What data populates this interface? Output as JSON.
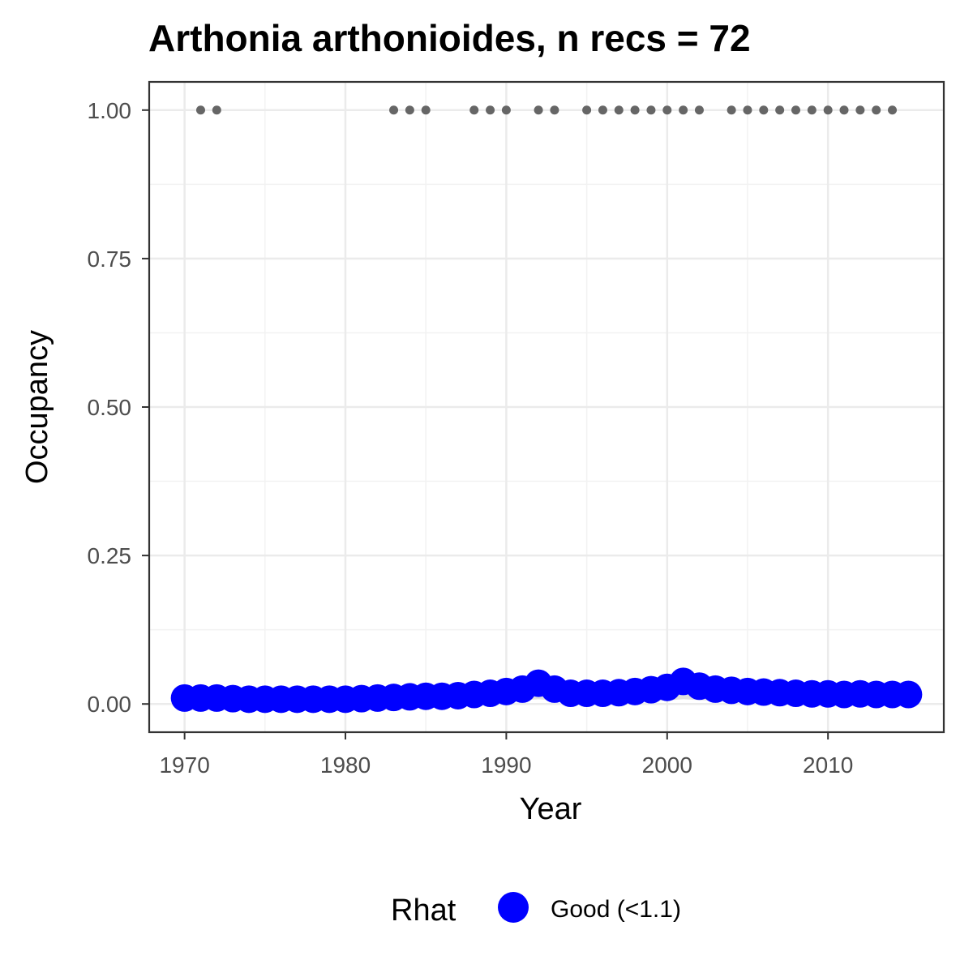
{
  "chart_data": {
    "type": "scatter",
    "title": "Arthonia arthonioides, n recs = 72",
    "xlabel": "Year",
    "ylabel": "Occupancy",
    "xlim": [
      1967.8,
      2017.2
    ],
    "ylim": [
      -0.0475,
      1.0475
    ],
    "x_ticks": [
      1970,
      1980,
      1990,
      2000,
      2010
    ],
    "x_tick_labels": [
      "1970",
      "1980",
      "1990",
      "2000",
      "2010"
    ],
    "y_ticks": [
      0,
      0.25,
      0.5,
      0.75,
      1
    ],
    "y_tick_labels": [
      "0.00",
      "0.25",
      "0.50",
      "0.75",
      "1.00"
    ],
    "grid": true,
    "legend": {
      "title": "Rhat",
      "position": "bottom",
      "entries": [
        {
          "label": "Good (<1.1)",
          "color": "#0000ff"
        }
      ]
    },
    "series": [
      {
        "name": "Good (<1.1)",
        "kind": "points",
        "color": "#0000ff",
        "x": [
          1970,
          1971,
          1972,
          1973,
          1974,
          1975,
          1976,
          1977,
          1978,
          1979,
          1980,
          1981,
          1982,
          1983,
          1984,
          1985,
          1986,
          1987,
          1988,
          1989,
          1990,
          1991,
          1992,
          1993,
          1994,
          1995,
          1996,
          1997,
          1998,
          1999,
          2000,
          2001,
          2002,
          2003,
          2004,
          2005,
          2006,
          2007,
          2008,
          2009,
          2010,
          2011,
          2012,
          2013,
          2014,
          2015
        ],
        "y": [
          0.01,
          0.01,
          0.01,
          0.009,
          0.008,
          0.008,
          0.008,
          0.008,
          0.008,
          0.008,
          0.008,
          0.009,
          0.01,
          0.011,
          0.012,
          0.013,
          0.013,
          0.014,
          0.016,
          0.018,
          0.021,
          0.025,
          0.035,
          0.025,
          0.018,
          0.018,
          0.018,
          0.019,
          0.021,
          0.024,
          0.028,
          0.038,
          0.03,
          0.025,
          0.023,
          0.021,
          0.02,
          0.019,
          0.018,
          0.017,
          0.017,
          0.016,
          0.017,
          0.016,
          0.016,
          0.016
        ]
      },
      {
        "name": "",
        "kind": "credible-band",
        "color": "#d9d9d9",
        "x": [
          1970,
          1980,
          1990,
          1992,
          1994,
          2000,
          2001,
          2003,
          2010,
          2015
        ],
        "lower": [
          0.0,
          0.0,
          0.005,
          0.008,
          0.004,
          0.006,
          0.008,
          0.005,
          0.003,
          0.003
        ],
        "upper": [
          0.018,
          0.017,
          0.035,
          0.05,
          0.032,
          0.04,
          0.052,
          0.04,
          0.03,
          0.03
        ]
      },
      {
        "name": "",
        "kind": "records",
        "color": "#666666",
        "x": [
          1971,
          1972,
          1983,
          1984,
          1985,
          1988,
          1989,
          1990,
          1992,
          1993,
          1995,
          1996,
          1997,
          1998,
          1999,
          2000,
          2001,
          2002,
          2004,
          2005,
          2006,
          2007,
          2008,
          2009,
          2010,
          2011,
          2012,
          2013,
          2014
        ],
        "y": [
          1,
          1,
          1,
          1,
          1,
          1,
          1,
          1,
          1,
          1,
          1,
          1,
          1,
          1,
          1,
          1,
          1,
          1,
          1,
          1,
          1,
          1,
          1,
          1,
          1,
          1,
          1,
          1,
          1
        ]
      }
    ]
  }
}
